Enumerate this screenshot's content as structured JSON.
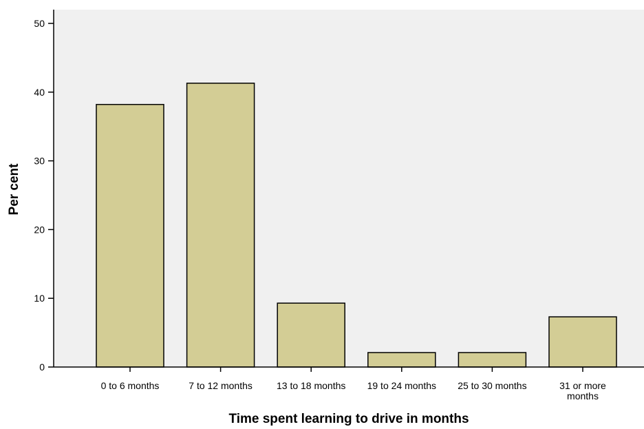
{
  "chart_data": {
    "type": "bar",
    "title": "",
    "xlabel": "Time spent learning to drive in months",
    "ylabel": "Per cent",
    "categories": [
      [
        "0 to 6 months"
      ],
      [
        "7 to 12 months"
      ],
      [
        "13 to 18 months"
      ],
      [
        "19 to 24 months"
      ],
      [
        "25 to 30 months"
      ],
      [
        "31 or more",
        "months"
      ]
    ],
    "values": [
      38.2,
      41.3,
      9.3,
      2.1,
      2.1,
      7.3
    ],
    "ylim": [
      0,
      52
    ],
    "yticks": [
      0,
      10,
      20,
      30,
      40,
      50
    ],
    "grid": false,
    "legend": "none",
    "colors": {
      "plot_background": "#f0f0f0",
      "bar_fill": "#d3cd95",
      "bar_stroke": "#000000",
      "axis": "#000000"
    }
  }
}
